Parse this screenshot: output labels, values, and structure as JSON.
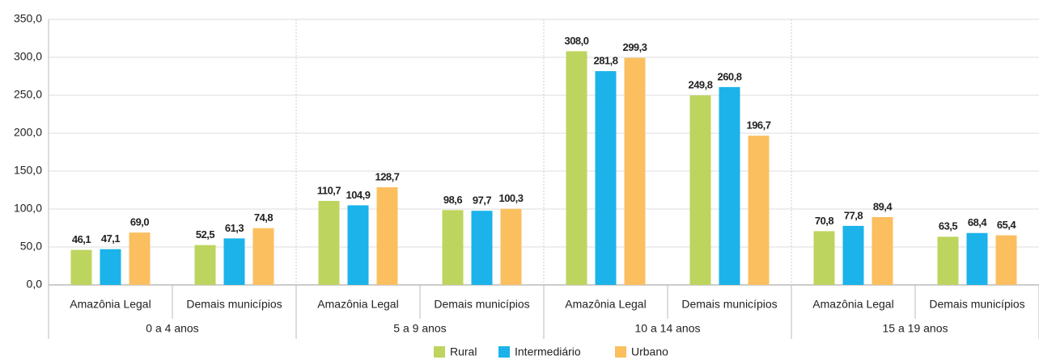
{
  "chart_data": {
    "type": "bar",
    "categories": [
      "Amazônia Legal",
      "Demais municípios",
      "Amazônia Legal",
      "Demais municípios",
      "Amazônia Legal",
      "Demais municípios",
      "Amazônia Legal",
      "Demais municípios"
    ],
    "groups": [
      "0 a 4 anos",
      "5 a 9 anos",
      "10 a 14 anos",
      "15 a 19 anos"
    ],
    "series": [
      {
        "name": "Rural",
        "color": "#bdd45f",
        "values": [
          46.1,
          52.5,
          110.7,
          98.6,
          308.0,
          249.8,
          70.8,
          63.5
        ],
        "value_labels": [
          "46,1",
          "52,5",
          "110,7",
          "98,6",
          "308,0",
          "249,8",
          "70,8",
          "63,5"
        ]
      },
      {
        "name": "Intermediário",
        "color": "#1bb3e9",
        "values": [
          47.1,
          61.3,
          104.9,
          97.7,
          281.8,
          260.8,
          77.8,
          68.4
        ],
        "value_labels": [
          "47,1",
          "61,3",
          "104,9",
          "97,7",
          "281,8",
          "260,8",
          "77,8",
          "68,4"
        ]
      },
      {
        "name": "Urbano",
        "color": "#fbbf60",
        "values": [
          69.0,
          74.8,
          128.7,
          100.3,
          299.3,
          196.7,
          89.4,
          65.4
        ],
        "value_labels": [
          "69,0",
          "74,8",
          "128,7",
          "100,3",
          "299,3",
          "196,7",
          "89,4",
          "65,4"
        ]
      }
    ],
    "ylim": [
      0,
      350
    ],
    "yticks": [
      {
        "value": 0,
        "label": "0,0"
      },
      {
        "value": 50,
        "label": "50,0"
      },
      {
        "value": 100,
        "label": "100,0"
      },
      {
        "value": 150,
        "label": "150,0"
      },
      {
        "value": 200,
        "label": "200,0"
      },
      {
        "value": 250,
        "label": "250,0"
      },
      {
        "value": 300,
        "label": "300,0"
      },
      {
        "value": 350,
        "label": "350,0"
      }
    ],
    "grid": true,
    "legend": "bottom"
  }
}
